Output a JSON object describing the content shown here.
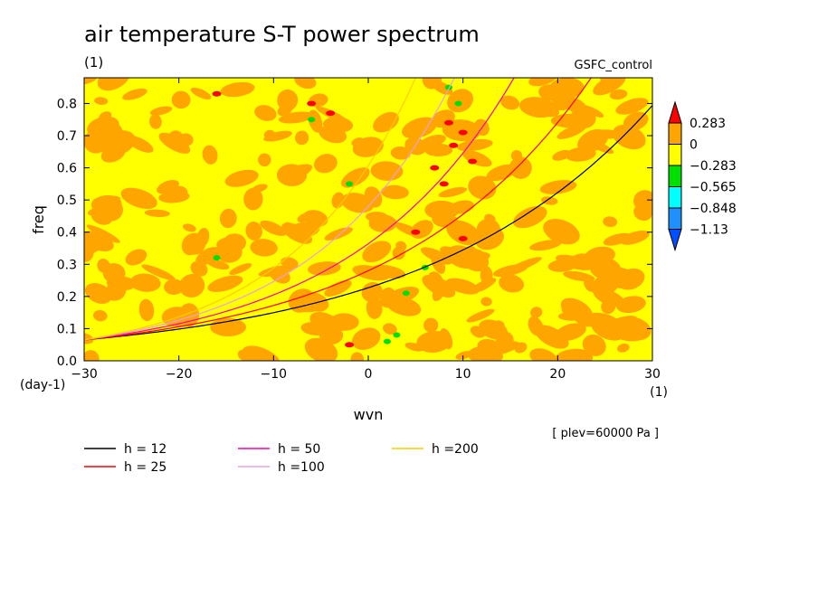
{
  "chart_data": {
    "type": "heatmap",
    "title": "air temperature S-T power spectrum",
    "units_top": "(1)",
    "experiment": "GSFC_control",
    "xlabel": "wvn",
    "ylabel": "freq",
    "x_units": "(1)",
    "y_units": "(day-1)",
    "xlim": [
      -30,
      30
    ],
    "ylim": [
      0,
      0.88
    ],
    "xticks": [
      "-30",
      "-20",
      "-10",
      "0",
      "10",
      "20",
      "30"
    ],
    "yticks": [
      "0.0",
      "0.1",
      "0.2",
      "0.3",
      "0.4",
      "0.5",
      "0.6",
      "0.7",
      "0.8"
    ],
    "level_note": "[ plev=60000 Pa ]",
    "colorbar": {
      "labels": [
        "0.283",
        "0",
        "-0.283",
        "-0.565",
        "-0.848",
        "-1.13"
      ],
      "colors": [
        "#ff0000",
        "#ffa500",
        "#ffff00",
        "#00e000",
        "#00ffff",
        "#1e90ff",
        "#0050ff"
      ]
    },
    "colors": {
      "above_0": "#ffa500",
      "range_m0283_0": "#ffff00",
      "above_0283": "#ff0000",
      "range_m0565_m0283": "#00e000",
      "range_m0848_m0565": "#00ffff"
    },
    "series": [
      {
        "name": "h = 12",
        "color": "#000000",
        "h": 12
      },
      {
        "name": "h = 25",
        "color": "#ff0000",
        "h": 25
      },
      {
        "name": "h = 50",
        "color": "#ff00aa",
        "h": 50
      },
      {
        "name": "h =100",
        "color": "#e8a0e0",
        "h": 100
      },
      {
        "name": "h =200",
        "color": "#ffcc00",
        "h": 200
      }
    ],
    "hot_spots": [
      {
        "x": -16,
        "y": 0.83
      },
      {
        "x": -6,
        "y": 0.8
      },
      {
        "x": -4,
        "y": 0.77
      },
      {
        "x": 8,
        "y": 0.55
      },
      {
        "x": 9,
        "y": 0.67
      },
      {
        "x": 10,
        "y": 0.71
      },
      {
        "x": 11,
        "y": 0.62
      },
      {
        "x": 7,
        "y": 0.6
      },
      {
        "x": 8.5,
        "y": 0.74
      },
      {
        "x": -2,
        "y": 0.05
      },
      {
        "x": 10,
        "y": 0.38
      },
      {
        "x": 5,
        "y": 0.4
      }
    ],
    "cold_spots": [
      {
        "x": -6,
        "y": 0.75
      },
      {
        "x": -2,
        "y": 0.55
      },
      {
        "x": 8.5,
        "y": 0.85
      },
      {
        "x": 2,
        "y": 0.06
      },
      {
        "x": 4,
        "y": 0.21
      },
      {
        "x": -16,
        "y": 0.32
      },
      {
        "x": 6,
        "y": 0.29
      },
      {
        "x": 9.5,
        "y": 0.8
      },
      {
        "x": 3,
        "y": 0.08
      }
    ]
  }
}
